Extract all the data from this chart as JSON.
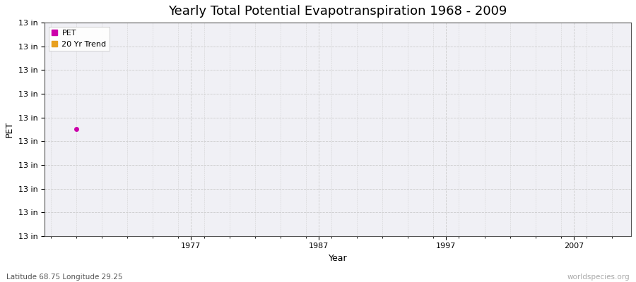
{
  "title": "Yearly Total Potential Evapotranspiration 1968 - 2009",
  "xlabel": "Year",
  "ylabel": "PET",
  "background_color": "#ffffff",
  "plot_bg_color": "#f0f0f5",
  "grid_color": "#cccccc",
  "years": [
    1968
  ],
  "pet_values": [
    13.0
  ],
  "pet_color": "#cc00aa",
  "trend_color": "#e8a020",
  "ylim_min": 12.95,
  "ylim_max": 13.05,
  "n_yticks": 10,
  "xlim": [
    1965.5,
    2011.5
  ],
  "ytick_label": "13 in",
  "xtick_positions": [
    1977,
    1987,
    1997,
    2007
  ],
  "subtitle": "Latitude 68.75 Longitude 29.25",
  "watermark": "worldspecies.org",
  "title_fontsize": 13,
  "axis_label_fontsize": 9,
  "tick_fontsize": 8,
  "legend_fontsize": 8
}
